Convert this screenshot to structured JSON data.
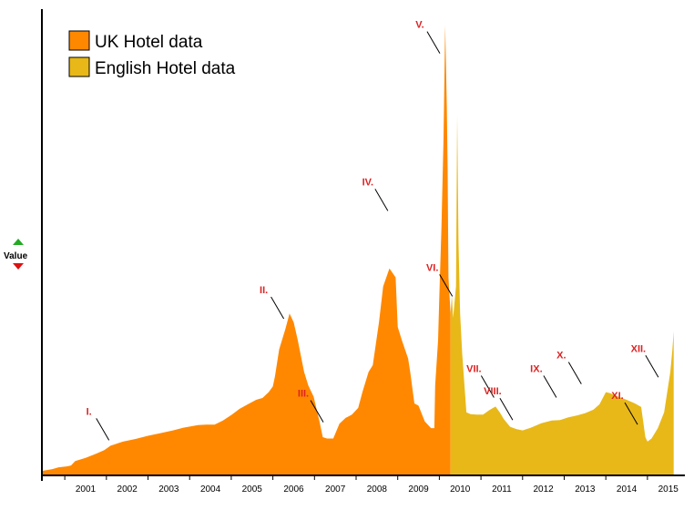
{
  "chart_data": {
    "type": "area",
    "ylabel": "Value",
    "colors": {
      "uk": "#ff8800",
      "england": "#e8b818",
      "annotation": "#dd2222",
      "axis": "#000000",
      "sort_up": "#22aa22",
      "sort_down": "#dd1111"
    },
    "legend": {
      "placement": "top-left"
    },
    "xlim": [
      2000.45,
      2015.9
    ],
    "ylim": [
      0,
      100
    ],
    "x_ticks": [
      "2001",
      "2002",
      "2003",
      "2004",
      "2005",
      "2006",
      "2007",
      "2008",
      "2009",
      "2010",
      "2011",
      "2012",
      "2013",
      "2014",
      "2015"
    ],
    "series": [
      {
        "name": "UK Hotel data",
        "color": "#ff8800",
        "points": [
          [
            2000.45,
            1.0
          ],
          [
            2000.7,
            1.4
          ],
          [
            2000.85,
            1.8
          ],
          [
            2001.05,
            2.0
          ],
          [
            2001.15,
            2.2
          ],
          [
            2001.25,
            3.2
          ],
          [
            2001.5,
            3.9
          ],
          [
            2001.75,
            4.8
          ],
          [
            2001.95,
            5.6
          ],
          [
            2002.1,
            6.6
          ],
          [
            2002.4,
            7.5
          ],
          [
            2002.7,
            8.1
          ],
          [
            2003.0,
            8.8
          ],
          [
            2003.3,
            9.4
          ],
          [
            2003.6,
            10.0
          ],
          [
            2003.85,
            10.6
          ],
          [
            2004.2,
            11.2
          ],
          [
            2004.4,
            11.3
          ],
          [
            2004.6,
            11.3
          ],
          [
            2004.8,
            12.2
          ],
          [
            2005.0,
            13.4
          ],
          [
            2005.2,
            14.8
          ],
          [
            2005.4,
            15.8
          ],
          [
            2005.6,
            16.8
          ],
          [
            2005.75,
            17.2
          ],
          [
            2005.9,
            18.5
          ],
          [
            2006.0,
            19.8
          ],
          [
            2006.05,
            22.0
          ],
          [
            2006.15,
            28.0
          ],
          [
            2006.3,
            32.5
          ],
          [
            2006.4,
            36.0
          ],
          [
            2006.5,
            34.0
          ],
          [
            2006.6,
            30.0
          ],
          [
            2006.75,
            23.0
          ],
          [
            2006.85,
            20.0
          ],
          [
            2006.98,
            17.5
          ],
          [
            2007.12,
            12.0
          ],
          [
            2007.2,
            8.5
          ],
          [
            2007.3,
            8.2
          ],
          [
            2007.45,
            8.2
          ],
          [
            2007.6,
            11.5
          ],
          [
            2007.75,
            12.8
          ],
          [
            2007.9,
            13.5
          ],
          [
            2008.05,
            15.0
          ],
          [
            2008.15,
            18.5
          ],
          [
            2008.3,
            23.0
          ],
          [
            2008.4,
            24.5
          ],
          [
            2008.55,
            34.0
          ],
          [
            2008.65,
            42.0
          ],
          [
            2008.8,
            46.0
          ],
          [
            2008.95,
            44.0
          ],
          [
            2009.0,
            33.0
          ],
          [
            2009.1,
            30.0
          ],
          [
            2009.25,
            26.0
          ],
          [
            2009.3,
            23.0
          ],
          [
            2009.4,
            16.0
          ],
          [
            2009.5,
            15.5
          ],
          [
            2009.65,
            12.0
          ],
          [
            2009.8,
            10.5
          ],
          [
            2009.88,
            10.5
          ],
          [
            2009.9,
            20.0
          ],
          [
            2009.97,
            30.0
          ],
          [
            2010.0,
            40.0
          ],
          [
            2010.05,
            55.0
          ],
          [
            2010.1,
            75.0
          ],
          [
            2010.14,
            100.0
          ],
          [
            2010.18,
            82.0
          ],
          [
            2010.2,
            68.0
          ],
          [
            2010.22,
            44.0
          ],
          [
            2010.27,
            36.0
          ]
        ]
      },
      {
        "name": "English Hotel data",
        "color": "#e8b818",
        "points": [
          [
            2010.27,
            36.0
          ],
          [
            2010.3,
            40.0
          ],
          [
            2010.33,
            35.0
          ],
          [
            2010.4,
            42.0
          ],
          [
            2010.43,
            80.0
          ],
          [
            2010.46,
            52.0
          ],
          [
            2010.5,
            36.0
          ],
          [
            2010.55,
            27.0
          ],
          [
            2010.65,
            14.0
          ],
          [
            2010.75,
            13.6
          ],
          [
            2010.9,
            13.5
          ],
          [
            2011.05,
            13.5
          ],
          [
            2011.2,
            14.5
          ],
          [
            2011.35,
            15.3
          ],
          [
            2011.45,
            14.0
          ],
          [
            2011.55,
            12.5
          ],
          [
            2011.7,
            10.8
          ],
          [
            2011.85,
            10.3
          ],
          [
            2012.0,
            10.0
          ],
          [
            2012.2,
            10.6
          ],
          [
            2012.45,
            11.6
          ],
          [
            2012.7,
            12.2
          ],
          [
            2012.9,
            12.3
          ],
          [
            2013.1,
            12.9
          ],
          [
            2013.3,
            13.3
          ],
          [
            2013.5,
            13.8
          ],
          [
            2013.7,
            14.6
          ],
          [
            2013.85,
            15.8
          ],
          [
            2014.0,
            18.5
          ],
          [
            2014.1,
            18.3
          ],
          [
            2014.3,
            17.5
          ],
          [
            2014.5,
            16.8
          ],
          [
            2014.7,
            16.0
          ],
          [
            2014.85,
            15.2
          ],
          [
            2014.95,
            8.5
          ],
          [
            2015.0,
            7.5
          ],
          [
            2015.1,
            8.2
          ],
          [
            2015.25,
            10.5
          ],
          [
            2015.4,
            14.0
          ],
          [
            2015.55,
            23.0
          ],
          [
            2015.6,
            28.0
          ],
          [
            2015.63,
            32.0
          ]
        ]
      }
    ],
    "annotations": [
      {
        "label": "I.",
        "x": 2002.15,
        "y": 7.0
      },
      {
        "label": "II.",
        "x": 2006.35,
        "y": 34.0
      },
      {
        "label": "III.",
        "x": 2007.3,
        "y": 11.0
      },
      {
        "label": "IV.",
        "x": 2008.85,
        "y": 58.0
      },
      {
        "label": "V.",
        "x": 2010.1,
        "y": 93.0
      },
      {
        "label": "VI.",
        "x": 2010.4,
        "y": 39.0
      },
      {
        "label": "VII.",
        "x": 2011.4,
        "y": 16.5
      },
      {
        "label": "VIII.",
        "x": 2011.85,
        "y": 11.5
      },
      {
        "label": "IX.",
        "x": 2012.9,
        "y": 16.5
      },
      {
        "label": "X.",
        "x": 2013.5,
        "y": 19.5
      },
      {
        "label": "XI.",
        "x": 2014.85,
        "y": 10.5
      },
      {
        "label": "XII.",
        "x": 2015.35,
        "y": 21.0
      }
    ]
  }
}
